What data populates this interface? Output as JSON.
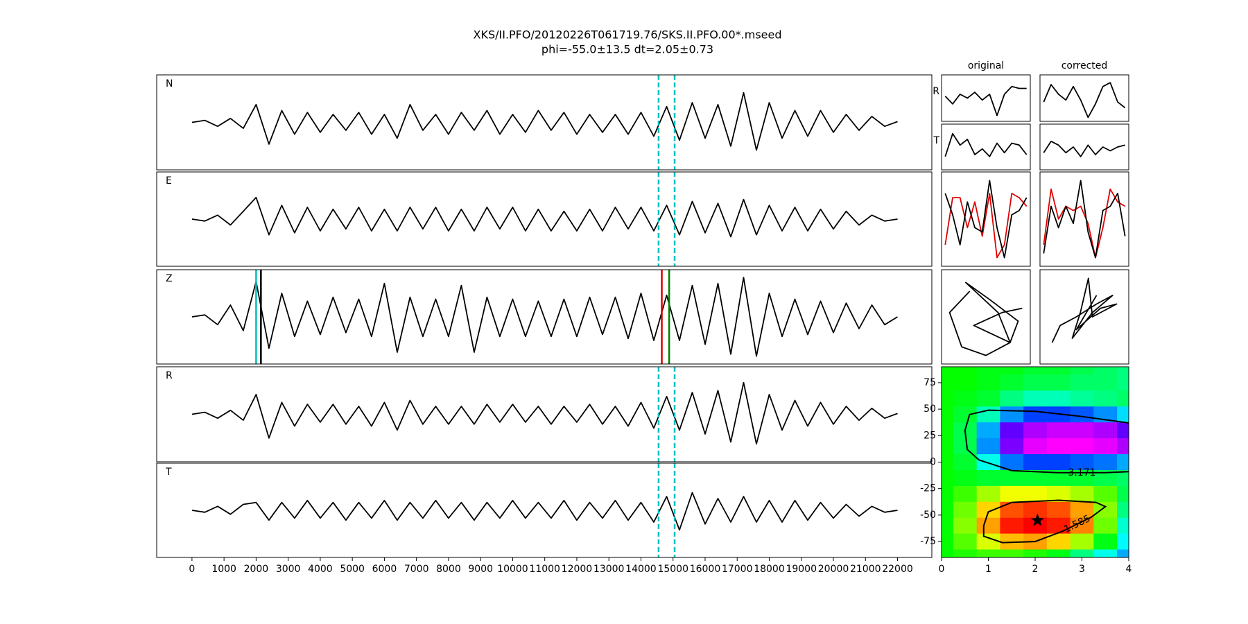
{
  "chart_data": [
    {
      "type": "line",
      "title": "XKS/II.PFO/20120226T061719.76/SKS.II.PFO.00*.mseed",
      "subtitle": "phi=-55.0±13.5 dt=2.05±0.73",
      "x": [
        0,
        400,
        800,
        1200,
        1600,
        2000,
        2400,
        2800,
        3200,
        3600,
        4000,
        4400,
        4800,
        5200,
        5600,
        6000,
        6400,
        6800,
        7200,
        7600,
        8000,
        8400,
        8800,
        9200,
        9600,
        10000,
        10400,
        10800,
        11200,
        11600,
        12000,
        12400,
        12800,
        13200,
        13600,
        14000,
        14400,
        14800,
        15200,
        15600,
        16000,
        16400,
        16800,
        17200,
        17600,
        18000,
        18400,
        18800,
        19200,
        19600,
        20000,
        20400,
        20800,
        21200,
        21600,
        22000
      ],
      "xlim": [
        -1100,
        23070
      ],
      "xticks": [
        0,
        1000,
        2000,
        3000,
        4000,
        5000,
        6000,
        7000,
        8000,
        9000,
        10000,
        11000,
        12000,
        13000,
        14000,
        15000,
        16000,
        17000,
        18000,
        19000,
        20000,
        21000,
        22000
      ],
      "ylim": [
        -1.2,
        1.2
      ],
      "series": [
        {
          "name": "N",
          "color": "#000000",
          "values": [
            0,
            0.05,
            -0.1,
            0.1,
            -0.15,
            0.45,
            -0.55,
            0.3,
            -0.3,
            0.25,
            -0.25,
            0.2,
            -0.2,
            0.25,
            -0.3,
            0.2,
            -0.4,
            0.45,
            -0.2,
            0.2,
            -0.3,
            0.25,
            -0.2,
            0.3,
            -0.3,
            0.2,
            -0.25,
            0.3,
            -0.2,
            0.25,
            -0.3,
            0.2,
            -0.25,
            0.2,
            -0.3,
            0.25,
            -0.35,
            0.4,
            -0.45,
            0.5,
            -0.4,
            0.45,
            -0.6,
            0.75,
            -0.7,
            0.5,
            -0.4,
            0.3,
            -0.35,
            0.3,
            -0.25,
            0.2,
            -0.2,
            0.15,
            -0.1,
            0.02
          ],
          "picks": [
            {
              "x": 14550,
              "color": "#00bfbf",
              "dashed": true
            },
            {
              "x": 15050,
              "color": "#00bfbf",
              "dashed": true
            }
          ]
        },
        {
          "name": "E",
          "color": "#000000",
          "values": [
            0,
            -0.05,
            0.1,
            -0.15,
            0.2,
            0.55,
            -0.4,
            0.35,
            -0.35,
            0.3,
            -0.3,
            0.25,
            -0.25,
            0.3,
            -0.3,
            0.25,
            -0.3,
            0.3,
            -0.25,
            0.3,
            -0.3,
            0.25,
            -0.3,
            0.3,
            -0.25,
            0.3,
            -0.3,
            0.25,
            -0.3,
            0.2,
            -0.3,
            0.25,
            -0.3,
            0.3,
            -0.25,
            0.3,
            -0.3,
            0.35,
            -0.4,
            0.45,
            -0.35,
            0.4,
            -0.45,
            0.5,
            -0.4,
            0.35,
            -0.3,
            0.3,
            -0.3,
            0.25,
            -0.25,
            0.2,
            -0.15,
            0.1,
            -0.05,
            0
          ],
          "picks": [
            {
              "x": 14550,
              "color": "#00bfbf",
              "dashed": true
            },
            {
              "x": 15050,
              "color": "#00bfbf",
              "dashed": true
            }
          ]
        },
        {
          "name": "Z",
          "color": "#000000",
          "values": [
            0,
            0.05,
            -0.2,
            0.3,
            -0.35,
            0.9,
            -0.8,
            0.6,
            -0.5,
            0.4,
            -0.45,
            0.5,
            -0.4,
            0.45,
            -0.5,
            0.85,
            -0.9,
            0.5,
            -0.5,
            0.45,
            -0.5,
            0.8,
            -0.9,
            0.5,
            -0.5,
            0.45,
            -0.5,
            0.4,
            -0.5,
            0.45,
            -0.5,
            0.5,
            -0.45,
            0.5,
            -0.55,
            0.6,
            -0.6,
            0.55,
            -0.6,
            0.8,
            -0.7,
            0.85,
            -0.95,
            1.0,
            -1.0,
            0.6,
            -0.5,
            0.45,
            -0.45,
            0.4,
            -0.4,
            0.35,
            -0.3,
            0.3,
            -0.2,
            0
          ],
          "picks": [
            {
              "x": 2000,
              "color": "#00bfbf",
              "dashed": false
            },
            {
              "x": 2150,
              "color": "#000000",
              "dashed": false
            },
            {
              "x": 14650,
              "color": "#e00000",
              "dashed": false
            },
            {
              "x": 14880,
              "color": "#008000",
              "dashed": false
            }
          ]
        },
        {
          "name": "R",
          "color": "#000000",
          "values": [
            0,
            0.05,
            -0.1,
            0.1,
            -0.15,
            0.5,
            -0.6,
            0.3,
            -0.3,
            0.25,
            -0.2,
            0.25,
            -0.25,
            0.2,
            -0.3,
            0.3,
            -0.4,
            0.35,
            -0.25,
            0.2,
            -0.25,
            0.2,
            -0.25,
            0.25,
            -0.2,
            0.25,
            -0.2,
            0.2,
            -0.25,
            0.2,
            -0.2,
            0.25,
            -0.25,
            0.2,
            -0.3,
            0.3,
            -0.35,
            0.45,
            -0.4,
            0.55,
            -0.5,
            0.6,
            -0.7,
            0.8,
            -0.75,
            0.5,
            -0.4,
            0.35,
            -0.3,
            0.3,
            -0.25,
            0.2,
            -0.15,
            0.15,
            -0.1,
            0.02
          ],
          "picks": [
            {
              "x": 14550,
              "color": "#00bfbf",
              "dashed": true
            },
            {
              "x": 15050,
              "color": "#00bfbf",
              "dashed": true
            }
          ]
        },
        {
          "name": "T",
          "color": "#000000",
          "values": [
            0,
            -0.05,
            0.1,
            -0.1,
            0.15,
            0.2,
            -0.25,
            0.2,
            -0.2,
            0.25,
            -0.2,
            0.2,
            -0.25,
            0.2,
            -0.2,
            0.25,
            -0.25,
            0.2,
            -0.2,
            0.25,
            -0.2,
            0.2,
            -0.25,
            0.2,
            -0.2,
            0.25,
            -0.2,
            0.2,
            -0.2,
            0.25,
            -0.25,
            0.2,
            -0.2,
            0.25,
            -0.25,
            0.2,
            -0.3,
            0.35,
            -0.5,
            0.45,
            -0.35,
            0.3,
            -0.3,
            0.35,
            -0.3,
            0.25,
            -0.3,
            0.25,
            -0.25,
            0.2,
            -0.2,
            0.15,
            -0.15,
            0.1,
            -0.05,
            0
          ],
          "picks": [
            {
              "x": 14550,
              "color": "#00bfbf",
              "dashed": true
            },
            {
              "x": 15050,
              "color": "#00bfbf",
              "dashed": true
            }
          ]
        }
      ]
    },
    {
      "type": "line",
      "title": "original",
      "x": [
        0,
        1,
        2,
        3,
        4,
        5,
        6,
        7,
        8,
        9,
        10,
        11
      ],
      "xlim": [
        -0.5,
        11.5
      ],
      "ylim": [
        -1.2,
        1.2
      ],
      "series": [
        {
          "name": "R",
          "color": "#000000",
          "values": [
            0.1,
            -0.3,
            0.2,
            0.0,
            0.3,
            -0.1,
            0.2,
            -0.9,
            0.2,
            0.6,
            0.5,
            0.5
          ]
        },
        {
          "name": "T",
          "color": "#000000",
          "values": [
            -0.5,
            0.7,
            0.1,
            0.4,
            -0.4,
            -0.1,
            -0.5,
            0.2,
            -0.3,
            0.2,
            0.1,
            -0.4
          ]
        }
      ]
    },
    {
      "type": "line",
      "title": "corrected",
      "x": [
        0,
        1,
        2,
        3,
        4,
        5,
        6,
        7,
        8,
        9,
        10,
        11
      ],
      "xlim": [
        -0.5,
        11.5
      ],
      "ylim": [
        -1.2,
        1.2
      ],
      "series": [
        {
          "color": "#000000",
          "values": [
            -0.2,
            0.7,
            0.2,
            -0.1,
            0.6,
            -0.1,
            -1.0,
            -0.3,
            0.6,
            0.8,
            -0.2,
            -0.5
          ]
        },
        {
          "color": "#000000",
          "values": [
            -0.3,
            0.3,
            0.1,
            -0.3,
            0.0,
            -0.5,
            0.1,
            -0.4,
            0.0,
            -0.2,
            0.0,
            0.1
          ]
        }
      ]
    },
    {
      "type": "line",
      "overlay": true,
      "x": [
        0,
        1,
        2,
        3,
        4,
        5,
        6,
        7,
        8,
        9,
        10,
        11
      ],
      "xlim": [
        -0.5,
        11.5
      ],
      "ylim": [
        -1.1,
        1.1
      ],
      "series": [
        {
          "color": "#e00000",
          "values": [
            -0.6,
            0.5,
            0.5,
            -0.2,
            0.4,
            -0.4,
            0.6,
            -0.9,
            -0.6,
            0.6,
            0.5,
            0.3
          ]
        },
        {
          "color": "#000000",
          "values": [
            0.6,
            0.1,
            -0.6,
            0.4,
            -0.2,
            -0.3,
            0.9,
            -0.2,
            -0.9,
            0.1,
            0.2,
            0.5
          ]
        }
      ]
    },
    {
      "type": "line",
      "overlay": true,
      "x": [
        0,
        1,
        2,
        3,
        4,
        5,
        6,
        7,
        8,
        9,
        10,
        11
      ],
      "xlim": [
        -0.5,
        11.5
      ],
      "ylim": [
        -1.1,
        1.1
      ],
      "series": [
        {
          "color": "#e00000",
          "values": [
            -0.6,
            0.7,
            0.0,
            0.3,
            0.2,
            0.3,
            -0.1,
            -0.9,
            -0.2,
            0.7,
            0.4,
            0.3
          ]
        },
        {
          "color": "#000000",
          "values": [
            -0.8,
            0.3,
            -0.2,
            0.3,
            -0.1,
            0.9,
            -0.3,
            -0.9,
            0.2,
            0.3,
            0.6,
            -0.4
          ]
        }
      ]
    },
    {
      "type": "line",
      "overlay": true,
      "xlim": [
        -1.1,
        1.1
      ],
      "ylim": [
        -1.1,
        1.1
      ],
      "series": [
        {
          "color": "#000000",
          "x": [
            -0.4,
            -0.9,
            -0.6,
            0.0,
            0.6,
            0.3,
            -0.5,
            0.1,
            0.8,
            0.6,
            -0.3,
            0.4,
            0.9
          ],
          "values": [
            0.6,
            0.1,
            -0.7,
            -0.9,
            -0.6,
            0.1,
            0.8,
            0.4,
            -0.1,
            -0.6,
            -0.2,
            0.1,
            0.2
          ]
        }
      ]
    },
    {
      "type": "line",
      "overlay": true,
      "xlim": [
        -1.1,
        1.1
      ],
      "ylim": [
        -1.1,
        1.1
      ],
      "series": [
        {
          "color": "#000000",
          "x": [
            -0.8,
            -0.6,
            -0.2,
            0.3,
            0.7,
            0.2,
            -0.3,
            -0.1,
            0.1,
            0.2,
            0.8,
            0.4,
            -0.2,
            0.3
          ],
          "values": [
            -0.6,
            -0.2,
            0.0,
            0.3,
            0.5,
            0.1,
            -0.5,
            0.1,
            0.9,
            0.0,
            0.3,
            0.2,
            -0.3,
            0.5
          ]
        }
      ]
    },
    {
      "type": "contour",
      "xlim": [
        0,
        4
      ],
      "ylim": [
        -90,
        90
      ],
      "xticks": [
        0,
        1,
        2,
        3,
        4
      ],
      "yticks": [
        -75,
        -50,
        -25,
        0,
        25,
        50,
        75
      ],
      "x": [
        0,
        0.5,
        1,
        1.5,
        2,
        2.5,
        3,
        3.5,
        4
      ],
      "y": [
        90,
        75,
        60,
        45,
        30,
        15,
        0,
        -15,
        -30,
        -45,
        -60,
        -75,
        -90
      ],
      "zlim": [
        1,
        5.8
      ],
      "z": [
        [
          2.9,
          2.9,
          3.0,
          3.0,
          3.1,
          3.1,
          3.2,
          3.3,
          3.4
        ],
        [
          2.9,
          2.9,
          3.0,
          3.1,
          3.2,
          3.2,
          3.3,
          3.3,
          3.4
        ],
        [
          2.9,
          3.0,
          3.1,
          3.4,
          3.6,
          3.6,
          3.5,
          3.4,
          3.3
        ],
        [
          2.9,
          3.1,
          3.6,
          4.3,
          4.6,
          4.6,
          4.5,
          4.3,
          4.0
        ],
        [
          2.9,
          3.2,
          4.2,
          5.2,
          5.5,
          5.6,
          5.6,
          5.5,
          5.2
        ],
        [
          2.9,
          3.2,
          4.3,
          5.3,
          5.7,
          5.8,
          5.8,
          5.7,
          5.5
        ],
        [
          2.9,
          3.1,
          3.8,
          4.4,
          4.6,
          4.6,
          4.5,
          4.4,
          4.2
        ],
        [
          2.9,
          3.0,
          3.1,
          3.1,
          3.1,
          3.1,
          3.1,
          3.2,
          3.3
        ],
        [
          2.9,
          2.7,
          2.3,
          2.0,
          2.0,
          2.1,
          2.3,
          2.6,
          3.2
        ],
        [
          2.9,
          2.5,
          1.8,
          1.3,
          1.2,
          1.3,
          1.6,
          2.4,
          3.4
        ],
        [
          2.9,
          2.4,
          1.6,
          1.1,
          1.0,
          1.1,
          1.5,
          2.5,
          3.7
        ],
        [
          2.9,
          2.6,
          2.1,
          1.7,
          1.6,
          1.8,
          2.3,
          3.0,
          3.9
        ],
        [
          2.9,
          2.8,
          2.7,
          2.7,
          2.8,
          3.0,
          3.4,
          3.8,
          4.2
        ]
      ],
      "contours": [
        {
          "level": 3.171,
          "x": [
            4,
            3,
            2,
            1,
            0.6,
            0.5,
            0.55,
            0.8,
            1.5,
            2.5,
            3.5,
            4
          ],
          "y": [
            37,
            43,
            48,
            49,
            45,
            30,
            12,
            2,
            -8,
            -10,
            -10,
            -9
          ]
        },
        {
          "level": 1.585,
          "x": [
            0.9,
            1.0,
            1.5,
            2.5,
            3.3,
            3.5,
            3.2,
            2.6,
            2.0,
            1.3,
            0.9,
            0.9
          ],
          "y": [
            -60,
            -47,
            -38,
            -36,
            -38,
            -42,
            -52,
            -65,
            -75,
            -76,
            -70,
            -60
          ]
        }
      ],
      "best": {
        "x": 2.05,
        "y": -55
      }
    }
  ]
}
